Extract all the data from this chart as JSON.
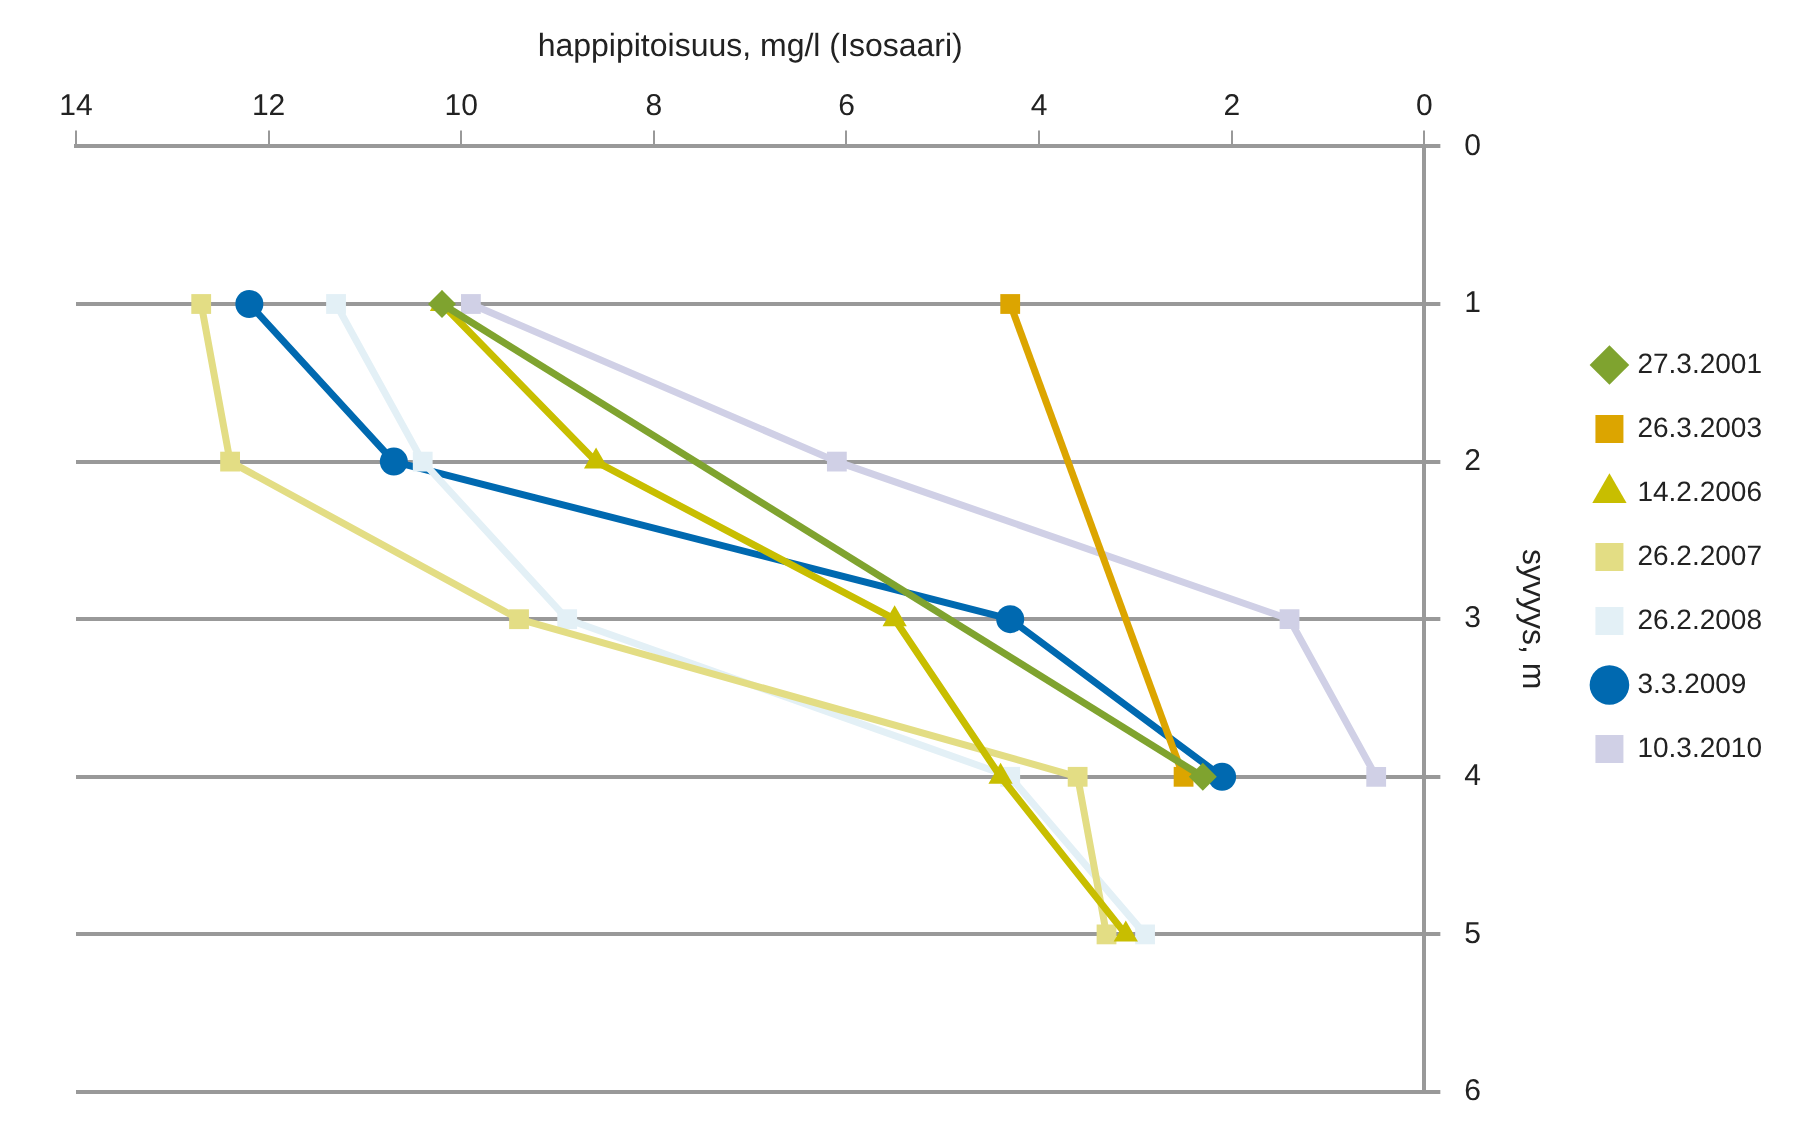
{
  "chart_data": {
    "type": "line",
    "xlabel": "happipitoisuus, mg/l (Isosaari)",
    "ylabel": "syvyys, m",
    "xlim": [
      14,
      0
    ],
    "xticks": [
      14,
      12,
      10,
      8,
      6,
      4,
      2,
      0
    ],
    "ylim": [
      6,
      0
    ],
    "yticks": [
      0,
      1,
      2,
      3,
      4,
      5,
      6
    ],
    "grid": "y",
    "legend": "right",
    "line_style": "solid",
    "series": [
      {
        "name": "27.3.2001",
        "color": "#7fa32f",
        "marker": "diamond",
        "x": [
          10.2,
          2.3
        ],
        "values": [
          1,
          4
        ]
      },
      {
        "name": "26.3.2003",
        "color": "#dca500",
        "marker": "square",
        "x": [
          4.3,
          2.5
        ],
        "values": [
          1,
          4
        ]
      },
      {
        "name": "14.2.2006",
        "color": "#c8be00",
        "marker": "triangle",
        "x": [
          10.2,
          8.6,
          5.5,
          4.4,
          3.1
        ],
        "values": [
          1,
          2,
          3,
          4,
          5
        ]
      },
      {
        "name": "26.2.2007",
        "color": "#e3dd84",
        "marker": "square",
        "x": [
          12.7,
          12.4,
          9.4,
          3.6,
          3.3
        ],
        "values": [
          1,
          2,
          3,
          4,
          5
        ]
      },
      {
        "name": "26.2.2008",
        "color": "#e3f0f6",
        "marker": "square",
        "x": [
          11.3,
          10.4,
          8.9,
          4.3,
          2.9
        ],
        "values": [
          1,
          2,
          3,
          4,
          5
        ]
      },
      {
        "name": "3.3.2009",
        "color": "#0069b0",
        "marker": "circle",
        "x": [
          12.2,
          10.7,
          4.3,
          2.1
        ],
        "values": [
          1,
          2,
          3,
          4
        ]
      },
      {
        "name": "10.3.2010",
        "color": "#d0d0e6",
        "marker": "square",
        "x": [
          9.9,
          6.1,
          1.4,
          0.5
        ],
        "values": [
          1,
          2,
          3,
          4
        ]
      }
    ]
  }
}
